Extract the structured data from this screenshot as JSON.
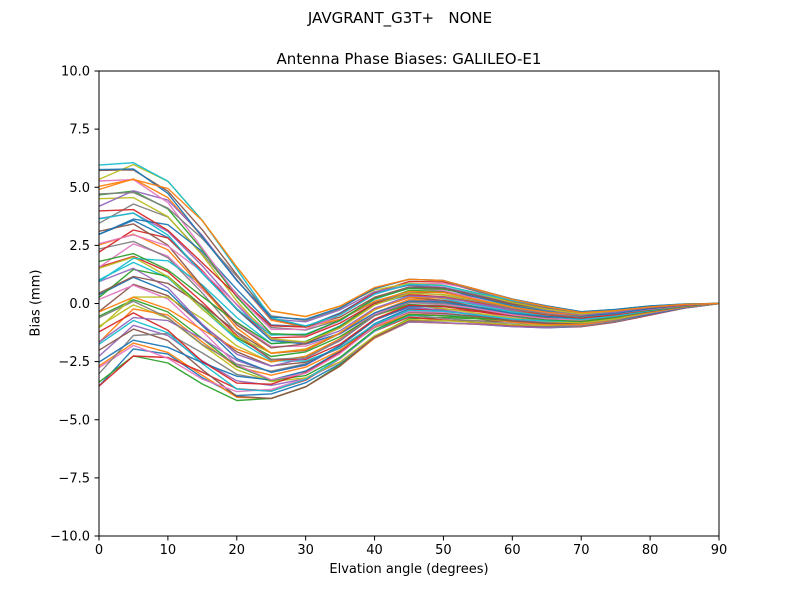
{
  "figure": {
    "title": "JAVGRANT_G3T+   NONE",
    "axes_title": "Antenna Phase Biases: GALILEO-E1",
    "xlabel": "Elvation angle (degrees)",
    "ylabel": "Bias (mm)"
  },
  "chart_data": {
    "type": "line",
    "title": "JAVGRANT_G3T+   NONE",
    "subtitle": "Antenna Phase Biases: GALILEO-E1",
    "xlabel": "Elvation angle (degrees)",
    "ylabel": "Bias (mm)",
    "xlim": [
      0,
      90
    ],
    "ylim": [
      -10,
      10
    ],
    "xticks": [
      0,
      10,
      20,
      30,
      40,
      50,
      60,
      70,
      80,
      90
    ],
    "xtick_labels": [
      "0",
      "10",
      "20",
      "30",
      "40",
      "50",
      "60",
      "70",
      "80",
      "90"
    ],
    "yticks": [
      -10,
      -7.5,
      -5,
      -2.5,
      0,
      2.5,
      5,
      7.5,
      10
    ],
    "ytick_labels": [
      "−10.0",
      "−7.5",
      "−5.0",
      "−2.5",
      "0.0",
      "2.5",
      "5.0",
      "7.5",
      "10.0"
    ],
    "grid": false,
    "legend": "none",
    "x": [
      0,
      5,
      10,
      15,
      20,
      25,
      30,
      35,
      40,
      45,
      50,
      55,
      60,
      65,
      70,
      75,
      80,
      85,
      90
    ],
    "envelope_low": [
      -3.6,
      -2.3,
      -2.6,
      -3.5,
      -4.2,
      -4.1,
      -3.6,
      -2.7,
      -1.5,
      -0.8,
      -0.85,
      -0.9,
      -1.0,
      -1.05,
      -1.0,
      -0.8,
      -0.5,
      -0.2,
      0.0
    ],
    "envelope_high": [
      6.0,
      6.1,
      5.3,
      3.6,
      1.6,
      -0.3,
      -0.55,
      -0.1,
      0.7,
      1.05,
      1.0,
      0.6,
      0.2,
      -0.1,
      -0.35,
      -0.25,
      -0.1,
      -0.02,
      0.0
    ],
    "mean": [
      1.2,
      1.9,
      1.35,
      0.05,
      -1.3,
      -2.2,
      -2.1,
      -1.4,
      -0.4,
      0.12,
      0.08,
      -0.15,
      -0.4,
      -0.58,
      -0.68,
      -0.53,
      -0.3,
      -0.11,
      0.0
    ],
    "series_count": 52,
    "line_width": 1.4,
    "colors": [
      "#1f77b4",
      "#ff7f0e",
      "#2ca02c",
      "#d62728",
      "#9467bd",
      "#8c564b",
      "#e377c2",
      "#7f7f7f",
      "#bcbd22",
      "#17becf"
    ]
  }
}
